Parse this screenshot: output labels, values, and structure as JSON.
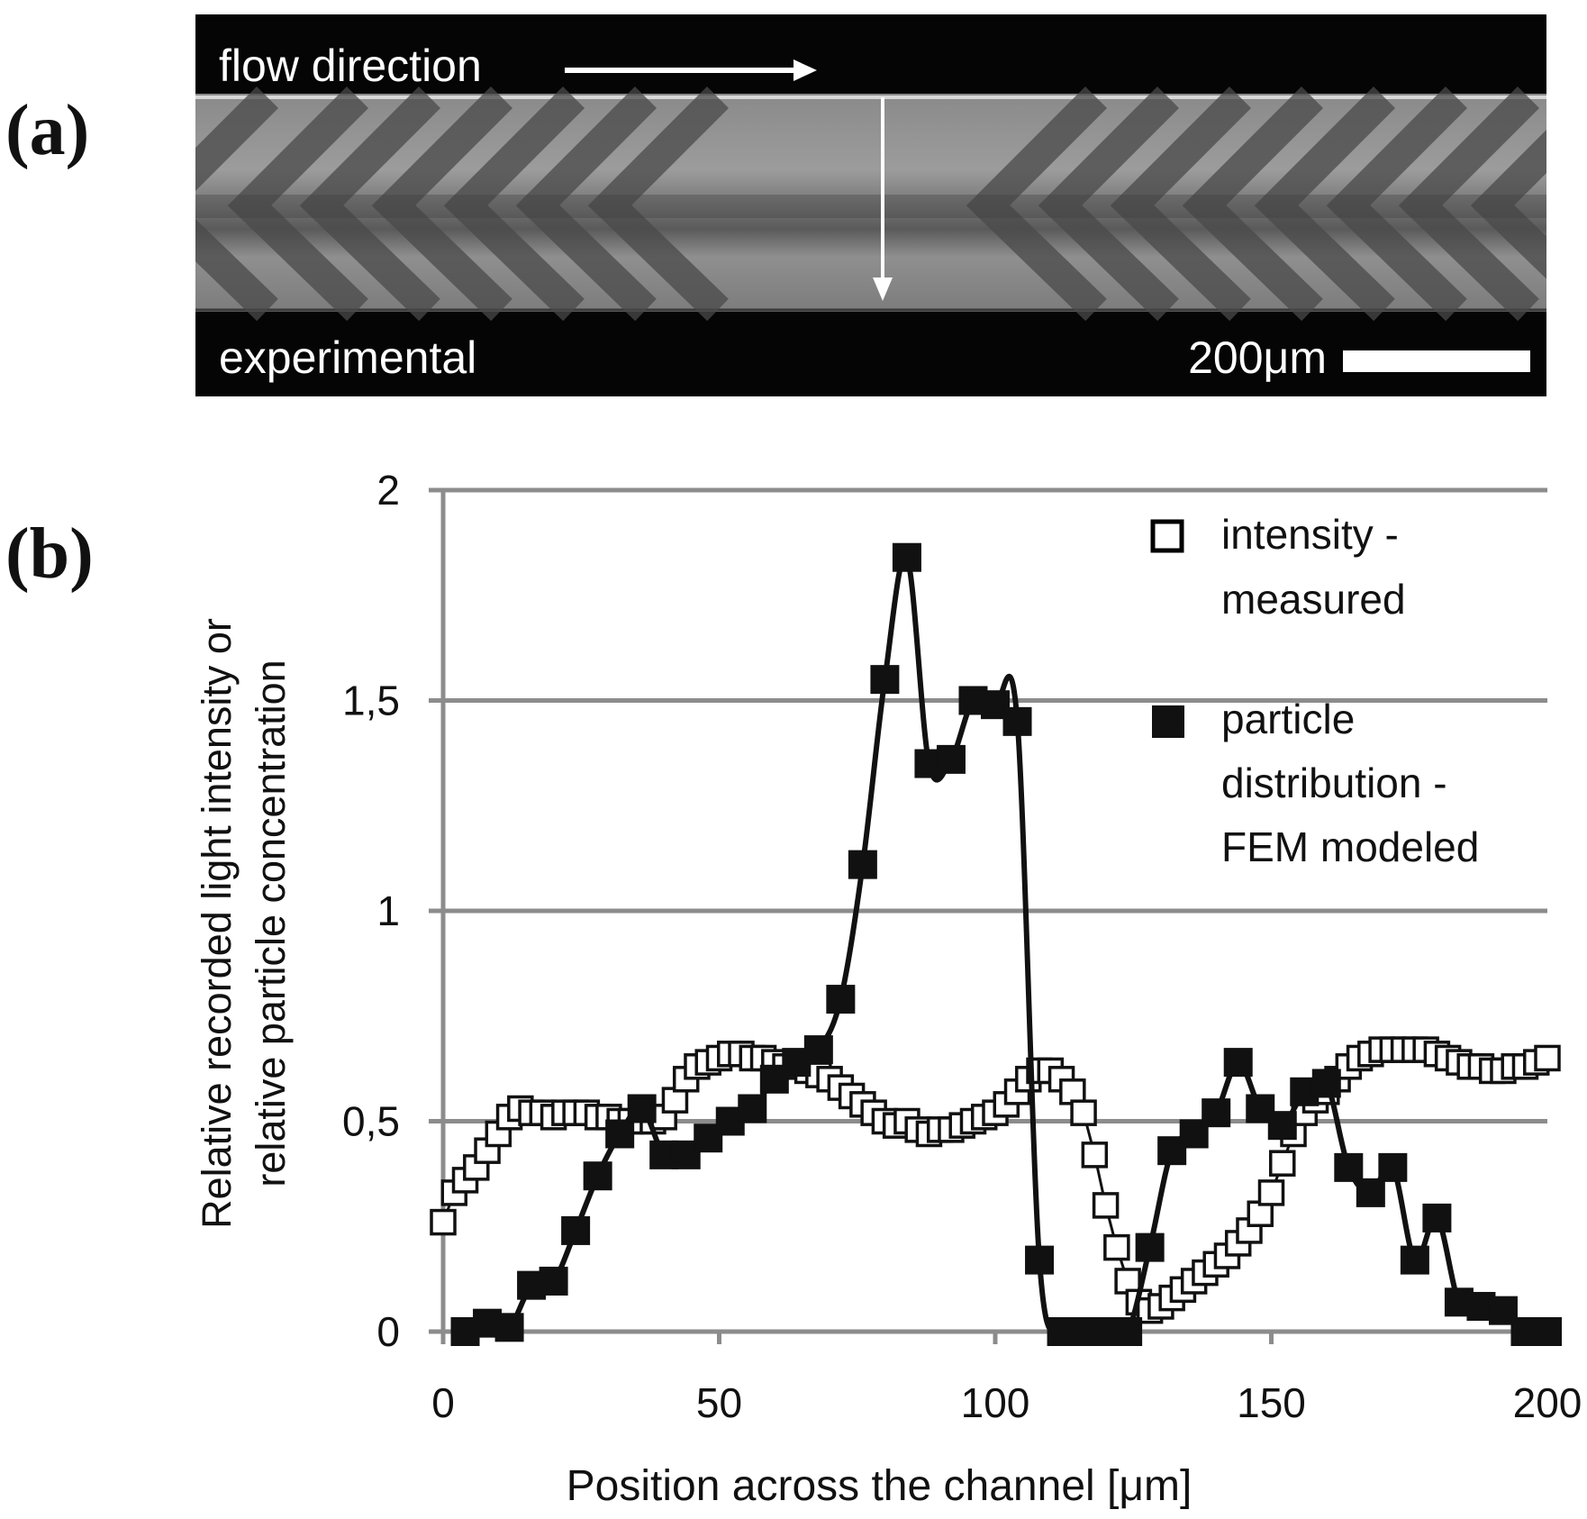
{
  "panel_labels": {
    "a": "(a)",
    "b": "(b)"
  },
  "micrograph": {
    "flow_label": "flow direction",
    "condition_label": "experimental",
    "scale_label": "200μm"
  },
  "chart_data": {
    "type": "line",
    "xlabel": "Position across the channel [μm]",
    "ylabel_line1": "Relative recorded light intensity or",
    "ylabel_line2": "relative particle concentration",
    "xlim": [
      0,
      200
    ],
    "ylim": [
      0,
      2
    ],
    "xticks": [
      0,
      50,
      100,
      150,
      200
    ],
    "xtick_labels": [
      "0",
      "50",
      "100",
      "150",
      "200"
    ],
    "yticks": [
      0,
      0.5,
      1,
      1.5,
      2
    ],
    "ytick_labels": [
      "0",
      "0,5",
      "1",
      "1,5",
      "2"
    ],
    "grid": "horizontal",
    "legend": {
      "position": "top-right",
      "entries": [
        {
          "lines": [
            "intensity -",
            "measured"
          ],
          "marker": "open-square"
        },
        {
          "lines": [
            "particle",
            "distribution -",
            "FEM modeled"
          ],
          "marker": "filled-square"
        }
      ]
    },
    "series": [
      {
        "name": "intensity - measured",
        "marker": "open-square",
        "x": [
          0,
          2,
          4,
          6,
          8,
          10,
          12,
          14,
          16,
          18,
          20,
          22,
          24,
          26,
          28,
          30,
          32,
          34,
          36,
          38,
          40,
          42,
          44,
          46,
          48,
          50,
          52,
          54,
          56,
          58,
          60,
          62,
          64,
          66,
          68,
          70,
          72,
          74,
          76,
          78,
          80,
          82,
          84,
          86,
          88,
          90,
          92,
          94,
          96,
          98,
          100,
          102,
          104,
          106,
          108,
          110,
          112,
          114,
          116,
          118,
          120,
          122,
          124,
          126,
          128,
          130,
          132,
          134,
          136,
          138,
          140,
          142,
          144,
          146,
          148,
          150,
          152,
          154,
          156,
          158,
          160,
          162,
          164,
          166,
          168,
          170,
          172,
          174,
          176,
          178,
          180,
          182,
          184,
          186,
          188,
          190,
          192,
          194,
          196,
          198,
          200
        ],
        "values": [
          0.26,
          0.33,
          0.36,
          0.39,
          0.43,
          0.47,
          0.51,
          0.53,
          0.52,
          0.52,
          0.51,
          0.52,
          0.52,
          0.52,
          0.51,
          0.51,
          0.5,
          0.5,
          0.5,
          0.5,
          0.51,
          0.55,
          0.6,
          0.63,
          0.64,
          0.65,
          0.66,
          0.66,
          0.65,
          0.65,
          0.64,
          0.63,
          0.63,
          0.62,
          0.61,
          0.6,
          0.58,
          0.56,
          0.54,
          0.52,
          0.5,
          0.49,
          0.5,
          0.48,
          0.47,
          0.48,
          0.48,
          0.49,
          0.5,
          0.51,
          0.52,
          0.54,
          0.57,
          0.6,
          0.62,
          0.62,
          0.6,
          0.57,
          0.52,
          0.42,
          0.3,
          0.2,
          0.12,
          0.07,
          0.05,
          0.06,
          0.08,
          0.1,
          0.12,
          0.14,
          0.16,
          0.18,
          0.21,
          0.24,
          0.28,
          0.33,
          0.4,
          0.47,
          0.52,
          0.55,
          0.57,
          0.6,
          0.63,
          0.65,
          0.66,
          0.67,
          0.67,
          0.67,
          0.67,
          0.67,
          0.66,
          0.65,
          0.64,
          0.63,
          0.63,
          0.62,
          0.62,
          0.63,
          0.63,
          0.64,
          0.65
        ]
      },
      {
        "name": "particle distribution - FEM modeled",
        "marker": "filled-square",
        "x": [
          4,
          8,
          12,
          16,
          20,
          24,
          28,
          32,
          36,
          40,
          44,
          48,
          52,
          56,
          60,
          64,
          68,
          72,
          76,
          80,
          84,
          88,
          92,
          96,
          100,
          104,
          108,
          112,
          116,
          120,
          124,
          128,
          132,
          136,
          140,
          144,
          148,
          152,
          156,
          160,
          164,
          168,
          172,
          176,
          180,
          184,
          188,
          192,
          196,
          200
        ],
        "values": [
          0.0,
          0.02,
          0.01,
          0.11,
          0.12,
          0.24,
          0.37,
          0.47,
          0.53,
          0.42,
          0.42,
          0.46,
          0.5,
          0.53,
          0.6,
          0.64,
          0.67,
          0.79,
          1.11,
          1.55,
          1.84,
          1.35,
          1.36,
          1.5,
          1.49,
          1.45,
          0.17,
          0.0,
          0.0,
          0.0,
          0.0,
          0.2,
          0.43,
          0.47,
          0.52,
          0.64,
          0.53,
          0.49,
          0.57,
          0.59,
          0.39,
          0.33,
          0.39,
          0.17,
          0.27,
          0.07,
          0.06,
          0.05,
          0.0,
          0.0
        ]
      }
    ]
  }
}
